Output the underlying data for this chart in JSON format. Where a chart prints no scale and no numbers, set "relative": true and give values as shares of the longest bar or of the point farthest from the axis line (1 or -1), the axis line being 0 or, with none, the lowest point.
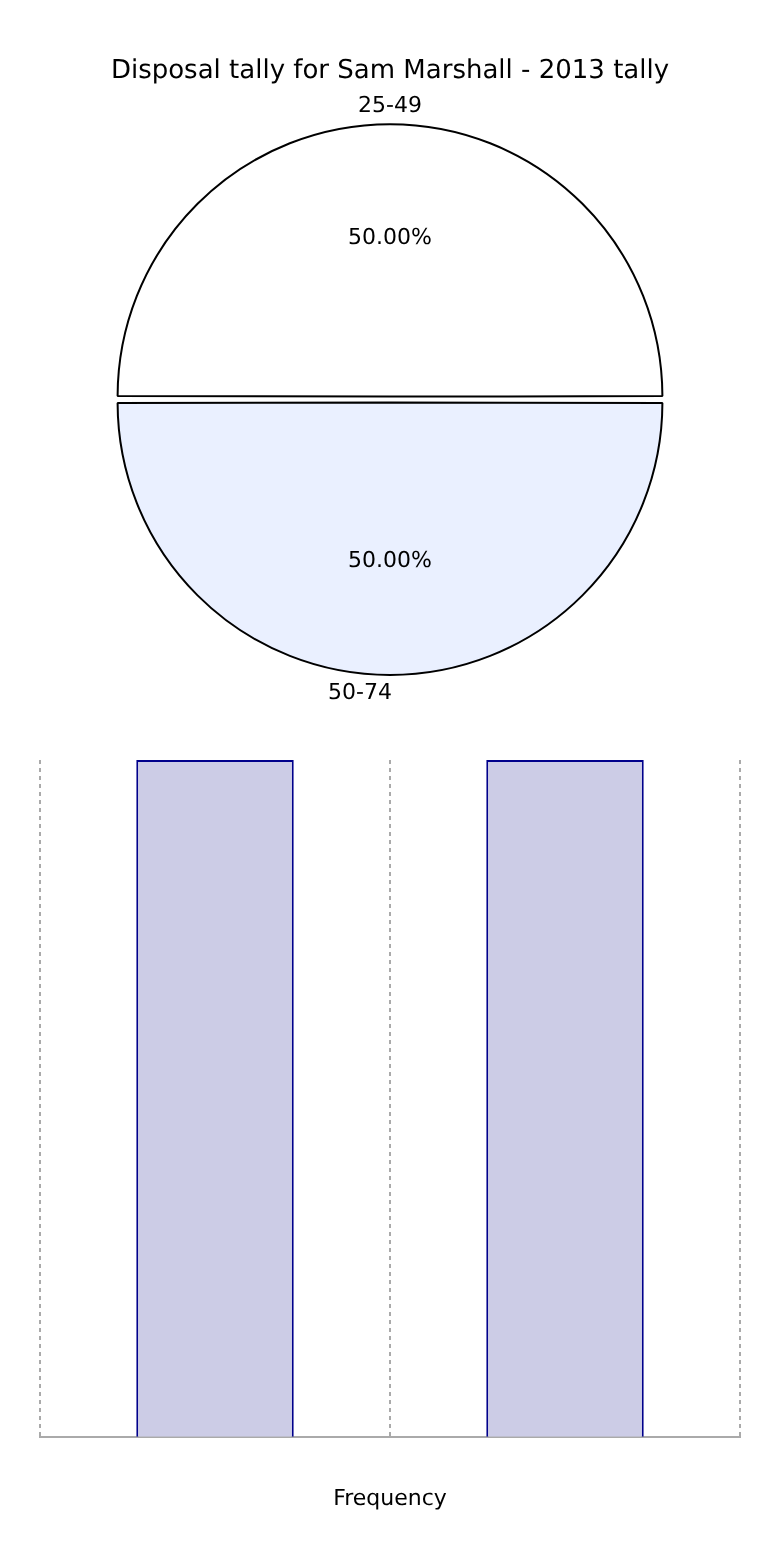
{
  "chart_data": [
    {
      "type": "pie",
      "title": "Disposal tally for Sam Marshall - 2013 tally",
      "categories": [
        "25-49",
        "50-74"
      ],
      "values": [
        50,
        50
      ],
      "colors": [
        "#ffffff",
        "#eaf0ff"
      ],
      "value_labels": [
        "50.00%",
        "50.00%"
      ],
      "legend": false
    },
    {
      "type": "bar",
      "xlabel": "Frequency",
      "categories": [
        null,
        null
      ],
      "values": [
        1,
        1
      ],
      "color": "#cccce6",
      "relative": true,
      "grid": "x",
      "legend": false
    }
  ]
}
